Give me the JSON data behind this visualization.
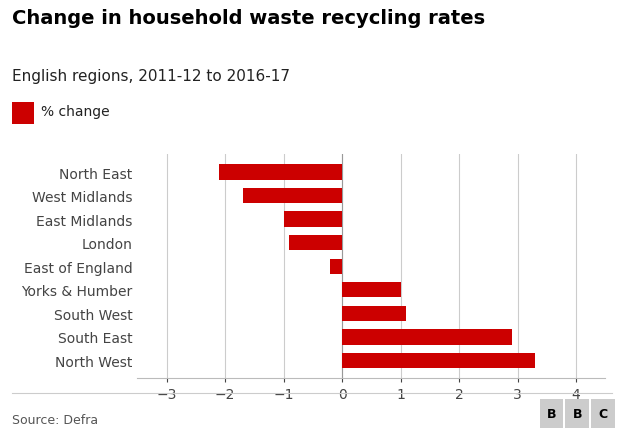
{
  "title": "Change in household waste recycling rates",
  "subtitle": "English regions, 2011-12 to 2016-17",
  "legend_label": "% change",
  "source": "Source: Defra",
  "categories": [
    "North West",
    "South East",
    "South West",
    "Yorks & Humber",
    "East of England",
    "London",
    "East Midlands",
    "West Midlands",
    "North East"
  ],
  "values": [
    3.3,
    2.9,
    1.1,
    1.0,
    -0.2,
    -0.9,
    -1.0,
    -1.7,
    -2.1
  ],
  "bar_color": "#cc0000",
  "background_color": "#ffffff",
  "xlim": [
    -3.5,
    4.5
  ],
  "xticks": [
    -3,
    -2,
    -1,
    0,
    1,
    2,
    3,
    4
  ],
  "title_fontsize": 14,
  "subtitle_fontsize": 11,
  "legend_fontsize": 10,
  "tick_fontsize": 10,
  "source_fontsize": 9
}
